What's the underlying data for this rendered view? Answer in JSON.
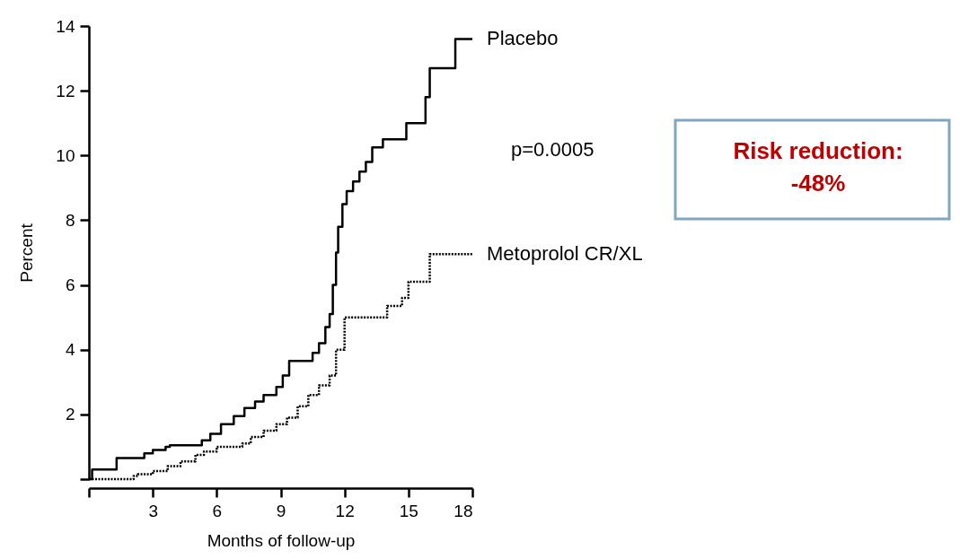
{
  "chart_data": {
    "type": "step",
    "xlabel": "Months of follow-up",
    "ylabel": "Percent",
    "xlim": [
      0,
      18
    ],
    "ylim": [
      0,
      14
    ],
    "xticks": [
      {
        "value": 0,
        "label": null
      },
      3,
      6,
      9,
      12,
      15,
      18
    ],
    "yticks": [
      {
        "value": 0,
        "label": null
      },
      2,
      4,
      6,
      8,
      10,
      12,
      14
    ],
    "grid": false,
    "marker": "none",
    "series": [
      {
        "name": "Placebo",
        "color": "#000000",
        "line_style": "solid",
        "x": [
          0,
          0.15,
          1.3,
          2.6,
          3.0,
          3.6,
          3.8,
          5.3,
          5.7,
          6.2,
          6.8,
          7.3,
          7.8,
          8.2,
          8.8,
          9.1,
          9.4,
          10.5,
          10.8,
          11.1,
          11.3,
          11.45,
          11.6,
          11.7,
          11.9,
          12.1,
          12.4,
          12.7,
          13.0,
          13.3,
          13.8,
          14.9,
          15.8,
          16.0,
          17.2,
          18.0
        ],
        "values": [
          0,
          0.3,
          0.65,
          0.8,
          0.9,
          1.0,
          1.05,
          1.2,
          1.4,
          1.7,
          1.95,
          2.2,
          2.4,
          2.6,
          2.85,
          3.2,
          3.65,
          3.9,
          4.2,
          4.7,
          5.1,
          6.0,
          7.0,
          7.8,
          8.5,
          8.9,
          9.2,
          9.5,
          9.8,
          10.25,
          10.5,
          11.0,
          11.8,
          12.7,
          13.6,
          13.6
        ]
      },
      {
        "name": "Metoprolol CR/XL",
        "color": "#000000",
        "line_style": "dotted",
        "x": [
          0,
          2.1,
          2.3,
          3.0,
          3.7,
          4.3,
          5.0,
          5.4,
          6.0,
          7.2,
          7.6,
          8.2,
          8.8,
          9.3,
          9.8,
          10.3,
          10.8,
          11.3,
          11.6,
          12.0,
          14.0,
          14.7,
          15.0,
          16.0,
          18.0
        ],
        "values": [
          0,
          0.1,
          0.15,
          0.25,
          0.4,
          0.55,
          0.75,
          0.85,
          1.0,
          1.1,
          1.3,
          1.5,
          1.7,
          1.9,
          2.25,
          2.6,
          2.9,
          3.2,
          4.0,
          5.0,
          5.35,
          5.6,
          6.1,
          6.95,
          6.95
        ]
      }
    ],
    "annotations": [
      "p=0.0005",
      "Risk reduction:\n-48%"
    ]
  }
}
